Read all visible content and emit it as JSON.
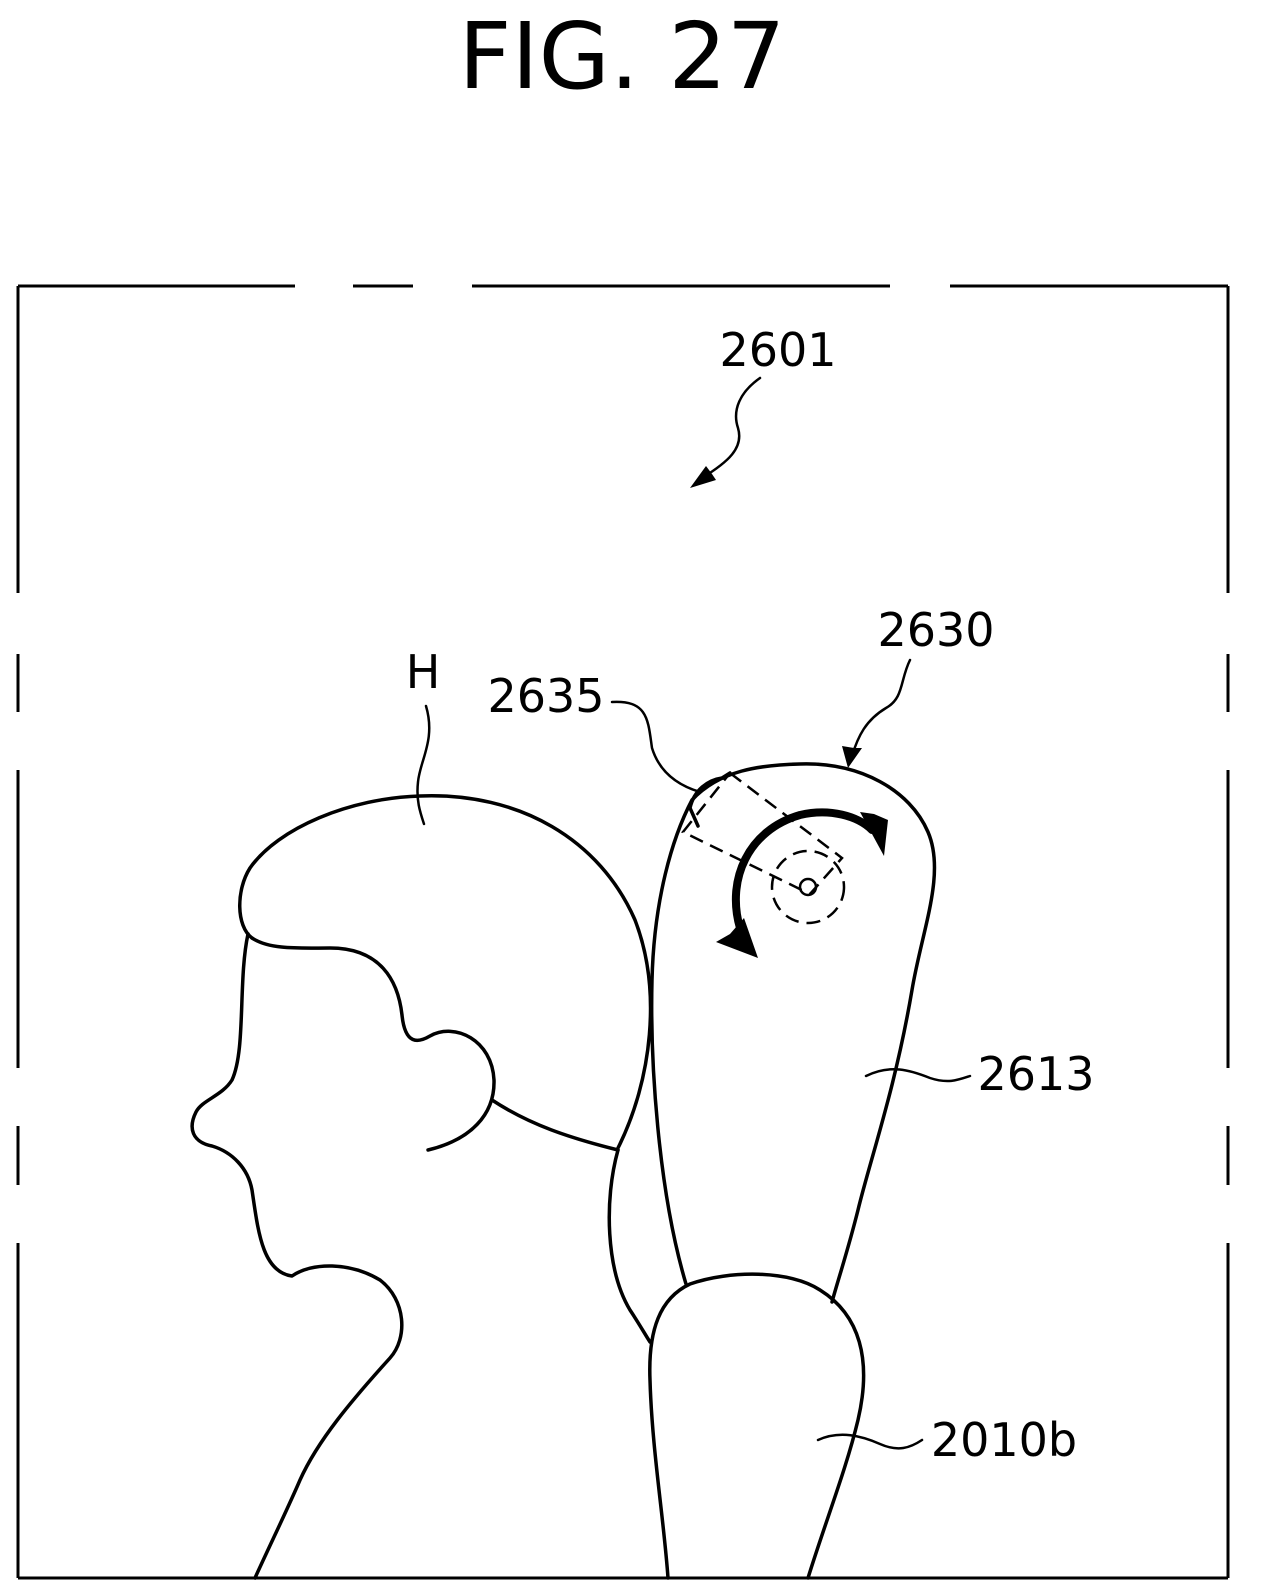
{
  "figure": {
    "title": "FIG. 27",
    "labels": {
      "screen": "2601",
      "projector": "2630",
      "camera": "2635",
      "head": "H",
      "arm": "2613",
      "body": "2010b"
    }
  },
  "colors": {
    "line": "#000000",
    "background": "#ffffff"
  }
}
